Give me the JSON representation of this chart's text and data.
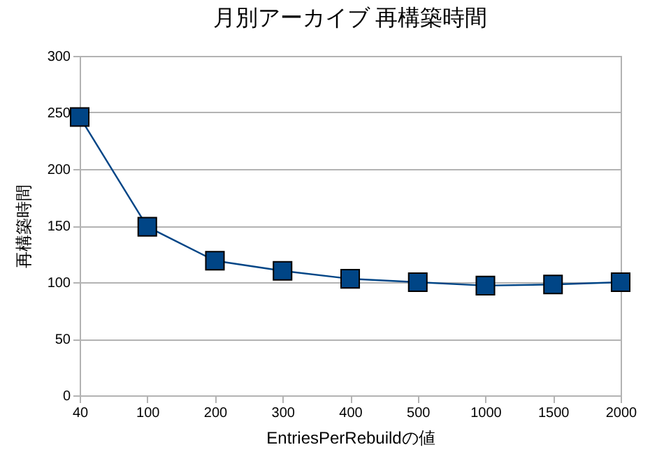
{
  "chart_data": {
    "type": "line",
    "title": "月別アーカイブ 再構築時間",
    "xlabel": "EntriesPerRebuildの値",
    "ylabel": "再構築時間",
    "categories": [
      "40",
      "100",
      "200",
      "300",
      "400",
      "500",
      "1000",
      "1500",
      "2000"
    ],
    "series": [
      {
        "color": "#004586",
        "values": [
          246,
          149,
          119,
          110,
          103,
          100,
          97,
          98,
          100
        ]
      }
    ],
    "ylim": [
      0,
      300
    ],
    "yticks": [
      0,
      50,
      100,
      150,
      200,
      250,
      300
    ],
    "grid": "y",
    "marker": "square",
    "line_style": "solid",
    "legend": false
  }
}
